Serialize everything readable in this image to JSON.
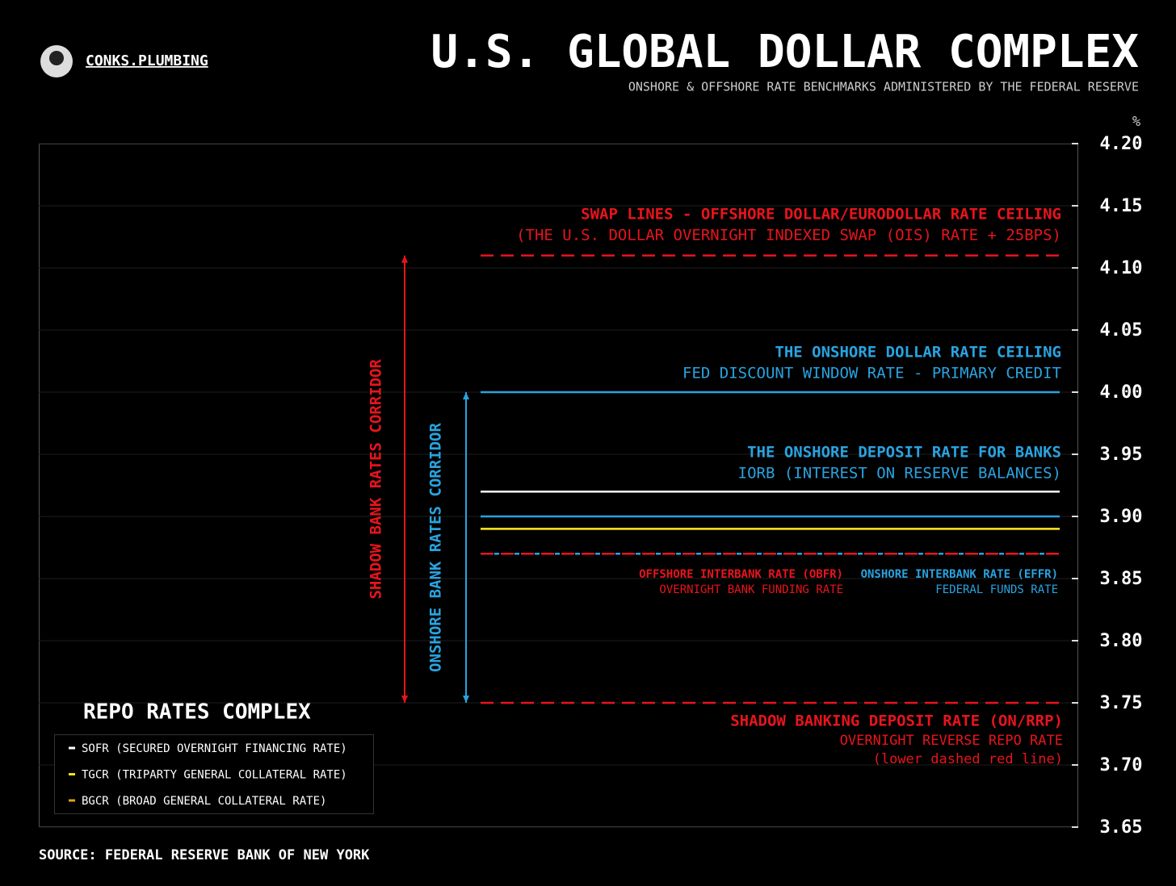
{
  "header": {
    "brand": "CONKS.PLUMBING"
  },
  "chart_data": {
    "type": "hline",
    "title": "U.S. GLOBAL DOLLAR COMPLEX",
    "subtitle": "ONSHORE & OFFSHORE RATE BENCHMARKS ADMINISTERED BY THE FEDERAL RESERVE",
    "y_unit": "%",
    "ylim": [
      3.65,
      4.2
    ],
    "yticks": [
      {
        "value": 4.2,
        "label": "4.20"
      },
      4.15,
      {
        "value": 4.1,
        "label": "4.10"
      },
      4.05,
      {
        "value": 4.0,
        "label": "4.00"
      },
      3.95,
      {
        "value": 3.9,
        "label": "3.90"
      },
      3.85,
      {
        "value": 3.8,
        "label": "3.80"
      },
      3.75,
      {
        "value": 3.7,
        "label": "3.70"
      },
      3.65
    ],
    "grid": true,
    "benchmarks": [
      {
        "name": "SWAP LINES - OFFSHORE DOLLAR/EURODOLLAR RATE CEILING",
        "notes": [
          "(THE U.S. DOLLAR OVERNIGHT INDEXED SWAP (OIS) RATE + 25BPS)"
        ],
        "value": 4.11,
        "color": "#e8141c",
        "dashed": true
      },
      {
        "name": "THE ONSHORE DOLLAR RATE CEILING",
        "notes": [
          "FED DISCOUNT WINDOW RATE - PRIMARY CREDIT"
        ],
        "value": 4.0,
        "color": "#29a3e0",
        "dashed": false
      },
      {
        "name": "THE ONSHORE DEPOSIT RATE FOR BANKS",
        "notes": [
          "IORB (INTEREST ON RESERVE BALANCES)"
        ],
        "value": 3.9,
        "color": "#29a3e0",
        "dashed": false
      },
      {
        "name": "OFFSHORE INTERBANK RATE (OBFR)",
        "notes": [
          "OVERNIGHT BANK FUNDING RATE"
        ],
        "value": 3.87,
        "color": "#e8141c",
        "dashed": true
      },
      {
        "name": "ONSHORE INTERBANK RATE (EFFR)",
        "notes": [
          "FEDERAL FUNDS RATE"
        ],
        "value": 3.87,
        "color": "#29a3e0",
        "dashed": true
      },
      {
        "name": "SHADOW BANKING DEPOSIT RATE (ON/RRP)",
        "notes": [
          "OVERNIGHT REVERSE REPO RATE",
          "(lower dashed red line)"
        ],
        "value": 3.75,
        "color": "#e8141c",
        "dashed": true
      }
    ],
    "series": [
      {
        "name": "SOFR (SECURED OVERNIGHT FINANCING RATE)",
        "color": "#ffffff",
        "value": 3.92
      },
      {
        "name": "TGCR (TRIPARTY GENERAL COLLATERAL RATE)",
        "color": "#f2e21a",
        "value": 3.89
      },
      {
        "name": "BGCR (BROAD GENERAL COLLATERAL RATE)",
        "color": "#e0a020",
        "value": 3.89
      }
    ],
    "legend": {
      "title": "REPO RATES COMPLEX",
      "position": "lower left"
    },
    "corridors": [
      {
        "name": "SHADOW BANK RATES CORRIDOR",
        "color": "#e8141c",
        "range": [
          3.75,
          4.11
        ]
      },
      {
        "name": "ONSHORE BANK RATES CORRIDOR",
        "color": "#29a3e0",
        "range": [
          3.75,
          4.0
        ]
      }
    ],
    "source": "SOURCE: FEDERAL RESERVE BANK OF NEW YORK"
  }
}
